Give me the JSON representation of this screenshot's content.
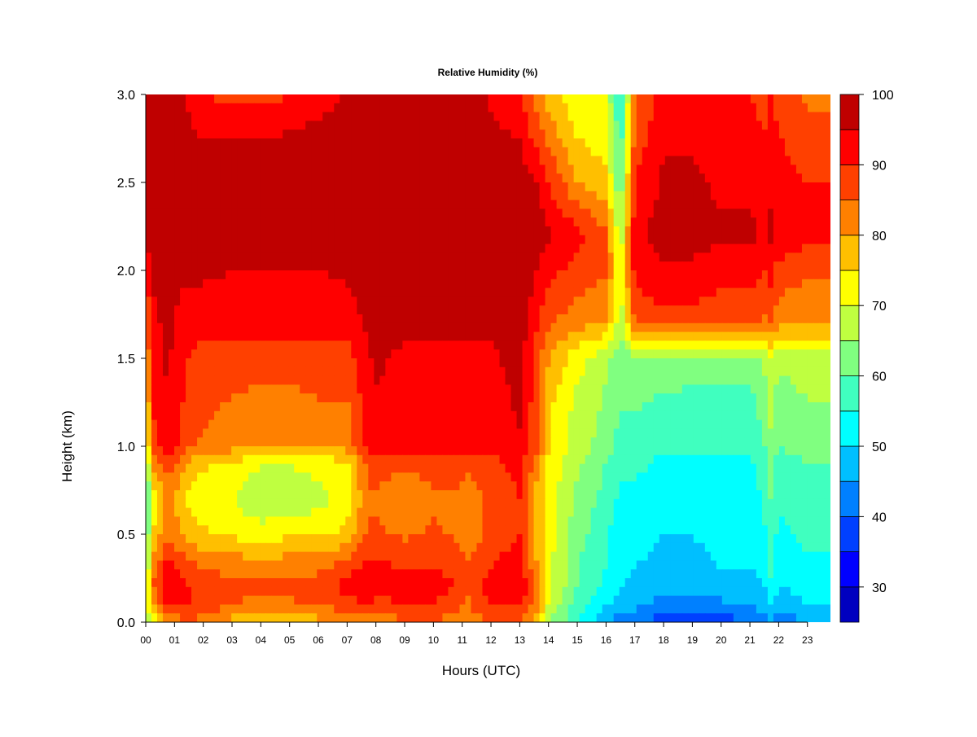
{
  "chart_data": {
    "type": "heatmap",
    "title": "Relative Humidity (%)",
    "xlabel": "Hours (UTC)",
    "ylabel": "Height (km)",
    "x_ticks": [
      "00",
      "01",
      "02",
      "03",
      "04",
      "05",
      "06",
      "07",
      "08",
      "09",
      "10",
      "11",
      "12",
      "13",
      "14",
      "15",
      "16",
      "17",
      "18",
      "19",
      "20",
      "21",
      "22",
      "23"
    ],
    "xlim": [
      0,
      23.8
    ],
    "y_ticks": [
      "0.0",
      "0.5",
      "1.0",
      "1.5",
      "2.0",
      "2.5",
      "3.0"
    ],
    "ylim": [
      0,
      3.0
    ],
    "colorbar": {
      "levels": [
        25,
        30,
        35,
        40,
        45,
        50,
        55,
        60,
        65,
        70,
        75,
        80,
        85,
        90,
        95,
        100
      ],
      "tick_labels": [
        "30",
        "40",
        "50",
        "60",
        "70",
        "80",
        "90",
        "100"
      ],
      "tick_values": [
        30,
        40,
        50,
        60,
        70,
        80,
        90,
        100
      ],
      "colors": [
        "#00007F",
        "#0000BF",
        "#0000FF",
        "#0040FF",
        "#0080FF",
        "#00BFFF",
        "#00FFFF",
        "#40FFBF",
        "#80FF80",
        "#BFFF40",
        "#FFFF00",
        "#FFBF00",
        "#FF8000",
        "#FF4000",
        "#FF0000",
        "#BF0000",
        "#7F0000"
      ]
    },
    "grid": false,
    "hours": [
      0,
      0.25,
      0.75,
      1.5,
      2,
      3,
      4,
      5,
      6,
      7,
      7.7,
      8,
      9,
      10,
      10.9,
      11.1,
      12,
      13,
      13.5,
      14,
      15,
      16,
      16.5,
      17,
      18,
      19,
      20,
      21,
      21.5,
      21.7,
      22,
      23,
      23.8
    ],
    "heights": [
      0,
      0.05,
      0.1,
      0.2,
      0.3,
      0.5,
      0.7,
      0.9,
      1.0,
      1.2,
      1.5,
      1.7,
      2.0,
      2.2,
      2.5,
      2.8,
      3.0
    ],
    "values": [
      [
        62,
        70,
        80,
        85,
        82,
        78,
        74,
        74,
        78,
        80,
        82,
        80,
        85,
        85,
        80,
        80,
        85,
        85,
        80,
        65,
        55,
        45,
        40,
        40,
        38,
        36,
        38,
        40,
        42,
        45,
        40,
        45,
        45
      ],
      [
        65,
        78,
        86,
        88,
        86,
        82,
        80,
        80,
        82,
        84,
        86,
        84,
        88,
        88,
        84,
        82,
        88,
        88,
        82,
        68,
        56,
        48,
        44,
        44,
        40,
        38,
        40,
        42,
        46,
        48,
        44,
        48,
        48
      ],
      [
        65,
        80,
        90,
        91,
        88,
        85,
        84,
        84,
        86,
        88,
        90,
        88,
        90,
        90,
        86,
        84,
        90,
        92,
        84,
        70,
        58,
        50,
        48,
        46,
        44,
        42,
        44,
        46,
        48,
        52,
        46,
        50,
        50
      ],
      [
        65,
        85,
        95,
        90,
        88,
        86,
        86,
        86,
        88,
        92,
        94,
        92,
        93,
        92,
        90,
        85,
        92,
        95,
        85,
        72,
        60,
        54,
        50,
        48,
        46,
        46,
        48,
        48,
        50,
        55,
        50,
        52,
        52
      ],
      [
        62,
        82,
        92,
        88,
        85,
        84,
        84,
        84,
        84,
        88,
        92,
        92,
        90,
        90,
        88,
        85,
        90,
        94,
        82,
        72,
        60,
        55,
        52,
        50,
        48,
        48,
        50,
        50,
        52,
        56,
        52,
        54,
        54
      ],
      [
        58,
        75,
        85,
        78,
        76,
        74,
        72,
        74,
        74,
        76,
        86,
        86,
        84,
        86,
        84,
        82,
        86,
        90,
        80,
        72,
        62,
        56,
        52,
        52,
        50,
        50,
        52,
        52,
        54,
        58,
        54,
        56,
        56
      ],
      [
        55,
        72,
        82,
        74,
        72,
        70,
        66,
        66,
        68,
        72,
        84,
        84,
        80,
        84,
        84,
        82,
        86,
        90,
        80,
        72,
        64,
        58,
        54,
        54,
        52,
        52,
        52,
        52,
        56,
        60,
        56,
        58,
        58
      ],
      [
        60,
        82,
        88,
        78,
        76,
        74,
        70,
        70,
        72,
        74,
        86,
        88,
        86,
        88,
        88,
        86,
        88,
        92,
        84,
        74,
        66,
        60,
        56,
        56,
        54,
        54,
        54,
        54,
        58,
        62,
        58,
        60,
        60
      ],
      [
        66,
        88,
        94,
        86,
        84,
        82,
        80,
        80,
        80,
        82,
        92,
        94,
        92,
        92,
        92,
        92,
        92,
        94,
        88,
        76,
        68,
        62,
        58,
        58,
        56,
        56,
        56,
        56,
        60,
        64,
        60,
        62,
        62
      ],
      [
        72,
        90,
        94,
        88,
        86,
        84,
        82,
        82,
        84,
        84,
        92,
        94,
        92,
        92,
        92,
        92,
        92,
        96,
        88,
        76,
        68,
        64,
        60,
        60,
        58,
        58,
        58,
        58,
        62,
        66,
        62,
        64,
        64
      ],
      [
        78,
        92,
        96,
        90,
        88,
        88,
        88,
        88,
        88,
        88,
        94,
        96,
        94,
        94,
        94,
        94,
        94,
        97,
        90,
        80,
        72,
        66,
        62,
        64,
        64,
        62,
        62,
        62,
        66,
        70,
        66,
        68,
        68
      ],
      [
        84,
        94,
        96,
        92,
        92,
        92,
        92,
        92,
        92,
        92,
        96,
        97,
        96,
        96,
        96,
        96,
        96,
        98,
        92,
        86,
        82,
        80,
        66,
        86,
        88,
        88,
        86,
        86,
        84,
        86,
        82,
        80,
        80
      ],
      [
        90,
        96,
        97,
        96,
        96,
        95,
        95,
        95,
        95,
        96,
        97,
        98,
        98,
        98,
        98,
        98,
        98,
        98,
        96,
        92,
        88,
        86,
        70,
        92,
        94,
        94,
        92,
        92,
        90,
        92,
        88,
        86,
        86
      ],
      [
        97,
        98,
        98,
        98,
        98,
        98,
        98,
        98,
        98,
        98,
        98,
        98,
        98,
        98,
        98,
        98,
        98,
        98,
        98,
        96,
        92,
        86,
        66,
        94,
        97,
        97,
        96,
        96,
        94,
        96,
        94,
        92,
        92
      ],
      [
        98,
        98,
        98,
        98,
        98,
        98,
        98,
        98,
        98,
        98,
        98,
        98,
        98,
        98,
        98,
        98,
        98,
        98,
        96,
        90,
        80,
        76,
        60,
        90,
        96,
        96,
        94,
        94,
        92,
        94,
        92,
        90,
        90
      ],
      [
        98,
        98,
        98,
        96,
        94,
        94,
        94,
        95,
        96,
        98,
        98,
        98,
        98,
        98,
        98,
        98,
        96,
        94,
        88,
        82,
        74,
        72,
        56,
        86,
        94,
        94,
        92,
        92,
        90,
        92,
        90,
        86,
        86
      ],
      [
        98,
        98,
        98,
        94,
        90,
        88,
        88,
        90,
        92,
        96,
        98,
        98,
        98,
        98,
        98,
        98,
        94,
        90,
        84,
        78,
        72,
        70,
        54,
        84,
        92,
        92,
        90,
        90,
        88,
        90,
        88,
        84,
        84
      ]
    ]
  }
}
